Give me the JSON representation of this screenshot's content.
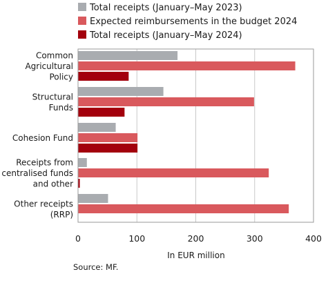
{
  "chart_data": {
    "type": "bar",
    "orientation": "horizontal",
    "categories": [
      [
        "Common",
        "Agricultural",
        "Policy"
      ],
      [
        "Structural",
        "Funds"
      ],
      [
        "Cohesion Fund"
      ],
      [
        "Receipts from",
        "centralised funds",
        "and other"
      ],
      [
        "Other receipts",
        "(RRP)"
      ]
    ],
    "series": [
      {
        "name": "Total receipts (January–May 2023)",
        "color": "#a9acb0",
        "values": [
          169,
          145,
          64,
          15,
          51
        ]
      },
      {
        "name": "Expected reimbursements in the budget 2024",
        "color": "#d9595d",
        "values": [
          369,
          299,
          101,
          324,
          358
        ]
      },
      {
        "name": "Total receipts (January–May 2024)",
        "color": "#a3000d",
        "values": [
          86,
          79,
          101,
          3,
          0
        ]
      }
    ],
    "xlim": [
      0,
      400
    ],
    "xticks": [
      0,
      100,
      200,
      300,
      400
    ],
    "xlabel": "In EUR million",
    "ylabel": "",
    "grid": "vertical",
    "legend_position": "top"
  },
  "source": "Source: MF."
}
